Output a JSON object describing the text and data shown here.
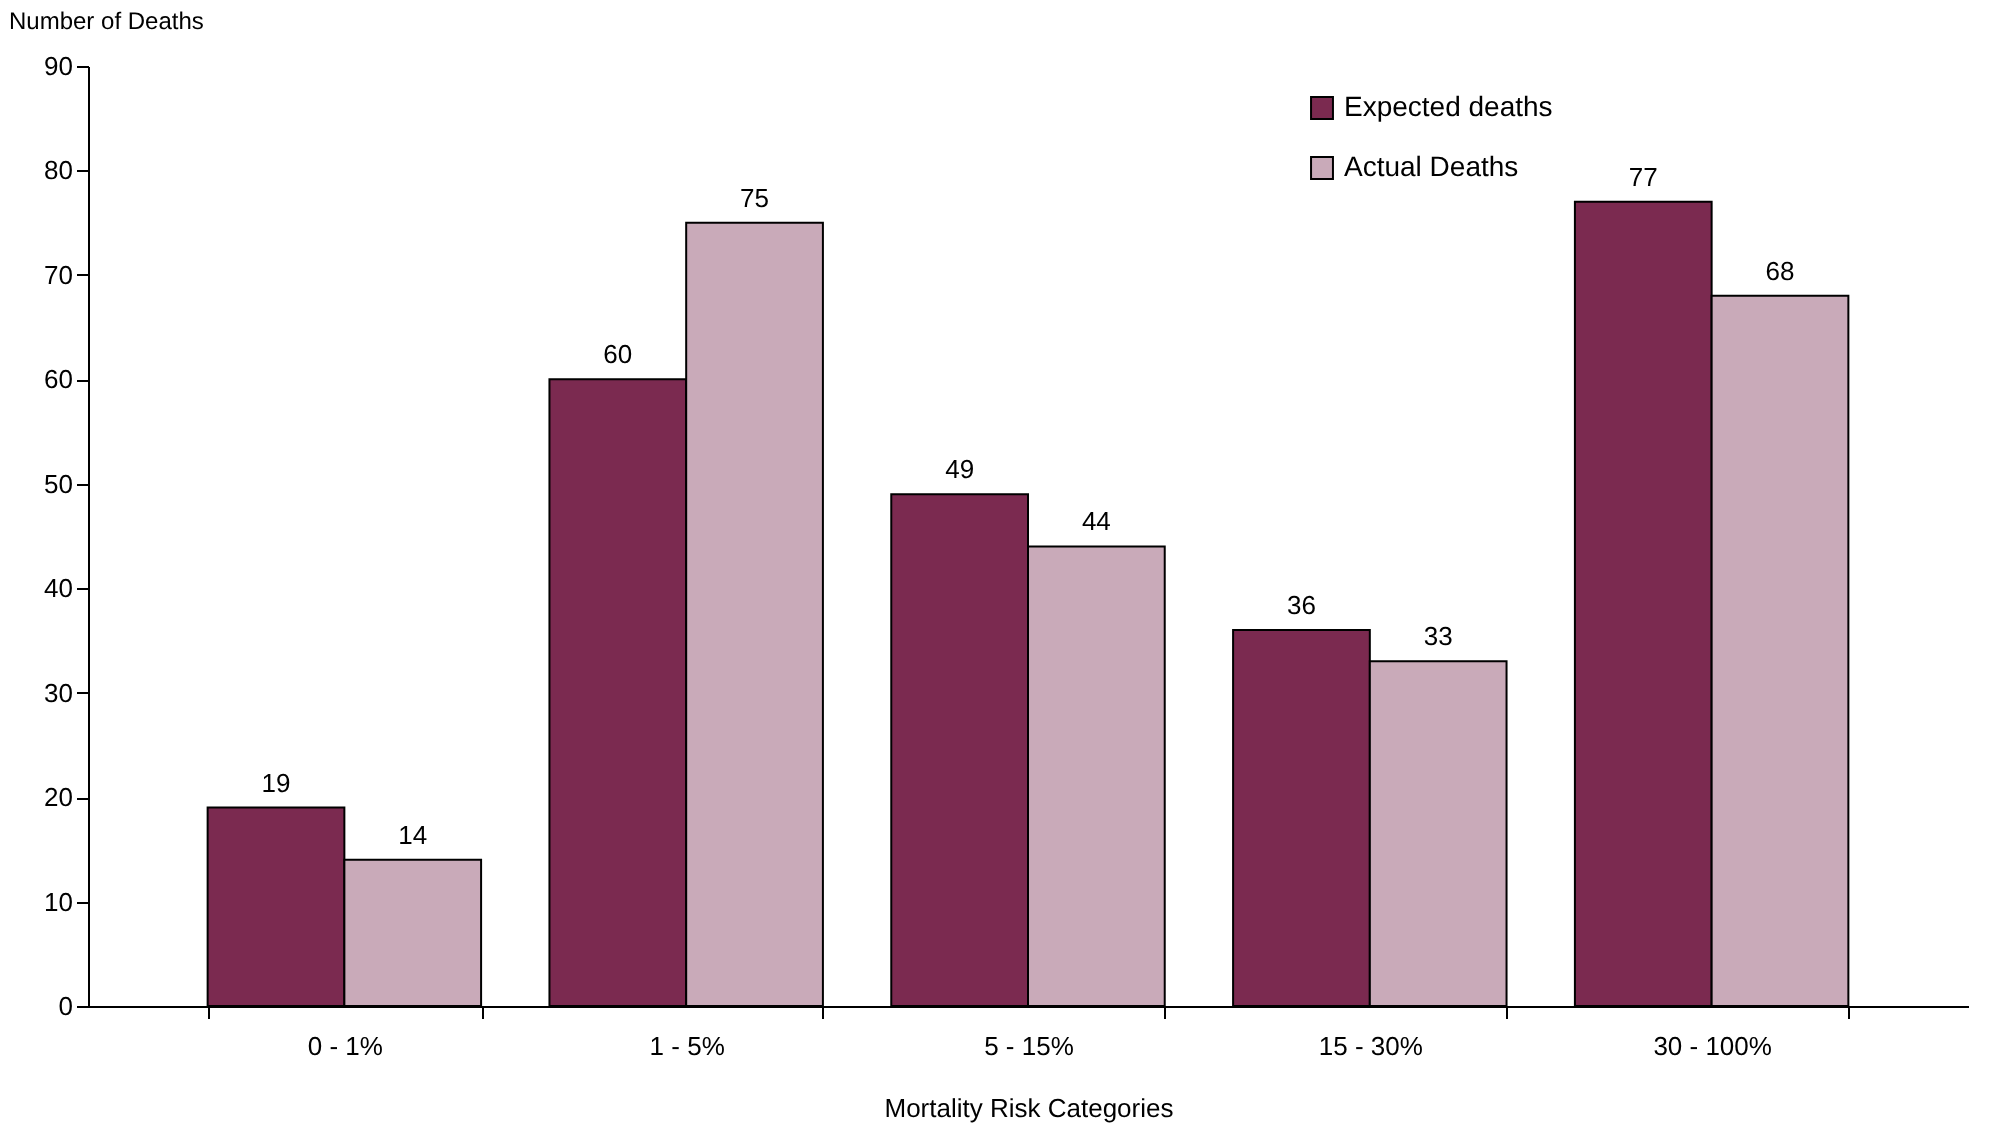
{
  "chart_data": {
    "type": "bar",
    "xlabel": "Mortality Risk Categories",
    "ylabel": "Number of Deaths",
    "categories": [
      "0 - 1%",
      "1 - 5%",
      "5 - 15%",
      "15 - 30%",
      "30 - 100%"
    ],
    "series": [
      {
        "name": "Expected deaths",
        "color": "#7b2a50",
        "values": [
          19,
          60,
          49,
          36,
          77
        ]
      },
      {
        "name": "Actual Deaths",
        "color": "#c9aab9",
        "values": [
          14,
          75,
          44,
          33,
          68
        ]
      }
    ],
    "ylim": [
      0,
      90
    ],
    "yticks": [
      0,
      10,
      20,
      30,
      40,
      50,
      60,
      70,
      80,
      90
    ],
    "grid": false,
    "legend": "top right",
    "data_labels": true
  }
}
